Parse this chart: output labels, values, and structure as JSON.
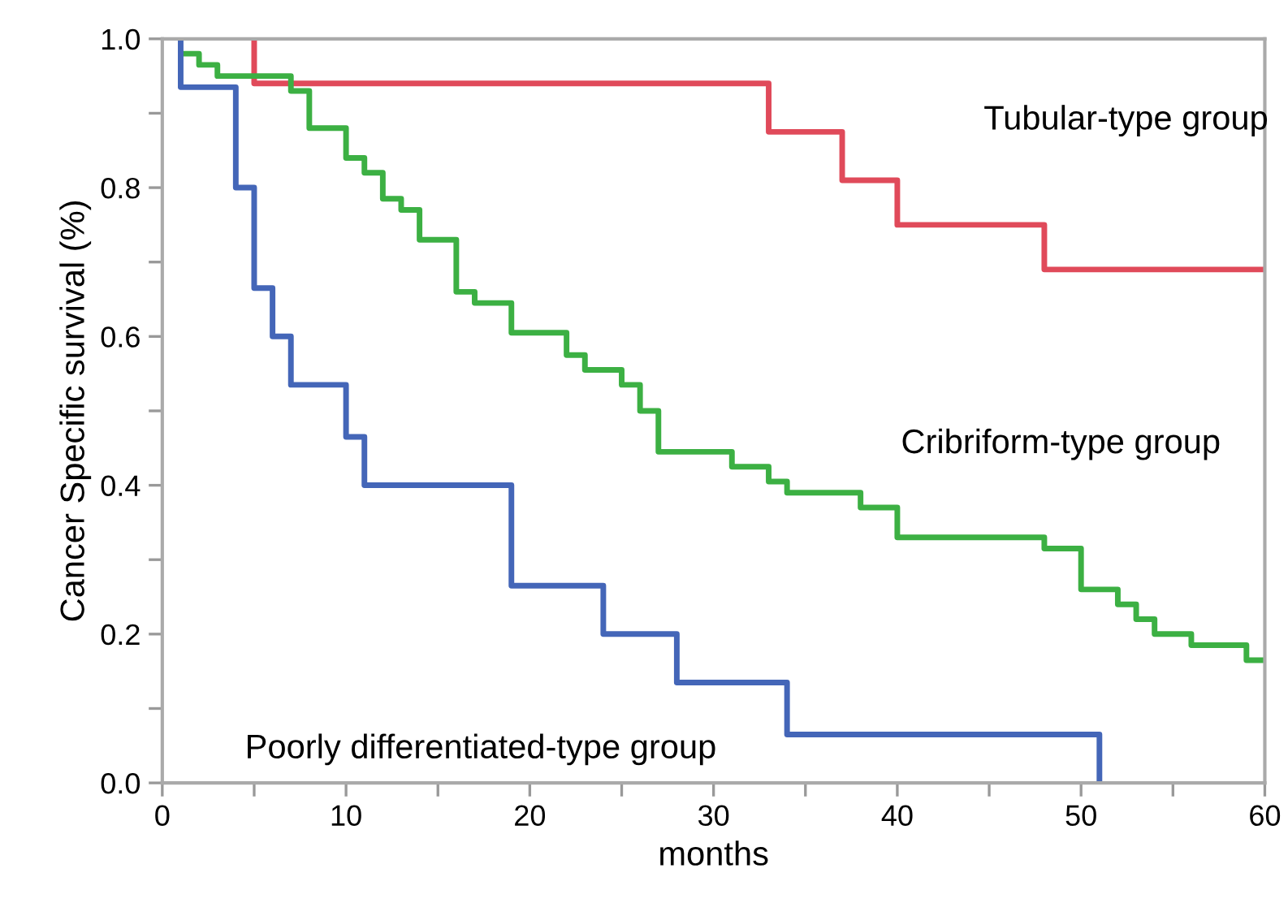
{
  "chart_data": {
    "type": "step",
    "xlabel": "months",
    "ylabel": "Cancer Specific survival (%)",
    "xlim": [
      0,
      60
    ],
    "ylim": [
      0,
      1.0
    ],
    "xticks": [
      0,
      {
        "value": 5,
        "label": null
      },
      10,
      {
        "value": 15,
        "label": null
      },
      20,
      {
        "value": 25,
        "label": null
      },
      30,
      {
        "value": 35,
        "label": null
      },
      40,
      {
        "value": 45,
        "label": null
      },
      50,
      {
        "value": 55,
        "label": null
      },
      60
    ],
    "yticks": [
      {
        "value": 0,
        "label": "0.0"
      },
      {
        "value": 0.1,
        "label": null
      },
      {
        "value": 0.2,
        "label": "0.2"
      },
      {
        "value": 0.3,
        "label": null
      },
      {
        "value": 0.4,
        "label": "0.4"
      },
      {
        "value": 0.5,
        "label": null
      },
      {
        "value": 0.6,
        "label": "0.6"
      },
      {
        "value": 0.7,
        "label": null
      },
      {
        "value": 0.8,
        "label": "0.8"
      },
      {
        "value": 0.9,
        "label": null
      },
      {
        "value": 1.0,
        "label": "1.0"
      }
    ],
    "grid": false,
    "legend": false,
    "marker": "none",
    "line_style": "solid",
    "series": [
      {
        "name": "Tubular-type group",
        "color": "#e04a5a",
        "x": [
          5,
          5,
          33,
          37,
          40,
          48,
          60
        ],
        "values": [
          1.0,
          0.94,
          0.875,
          0.81,
          0.75,
          0.69,
          0.69
        ]
      },
      {
        "name": "Cribriform-type group",
        "color": "#3cb043",
        "x": [
          1,
          2,
          3,
          7,
          8,
          10,
          11,
          12,
          13,
          14,
          16,
          17,
          19,
          22,
          23,
          25,
          26,
          27,
          31,
          33,
          34,
          38,
          40,
          48,
          50,
          52,
          53,
          54,
          56,
          59,
          60
        ],
        "values": [
          0.98,
          0.965,
          0.95,
          0.93,
          0.88,
          0.84,
          0.82,
          0.785,
          0.77,
          0.73,
          0.66,
          0.645,
          0.605,
          0.575,
          0.555,
          0.535,
          0.5,
          0.445,
          0.425,
          0.405,
          0.39,
          0.37,
          0.33,
          0.315,
          0.26,
          0.24,
          0.22,
          0.2,
          0.185,
          0.165,
          0.165
        ]
      },
      {
        "name": "Poorly differentiated-type group",
        "color": "#4466b8",
        "x": [
          1,
          1,
          4,
          5,
          6,
          7,
          10,
          11,
          19,
          24,
          28,
          34,
          51,
          51
        ],
        "values": [
          1.0,
          0.935,
          0.8,
          0.665,
          0.6,
          0.535,
          0.465,
          0.4,
          0.265,
          0.2,
          0.135,
          0.065,
          0.0,
          0.0
        ]
      }
    ]
  }
}
